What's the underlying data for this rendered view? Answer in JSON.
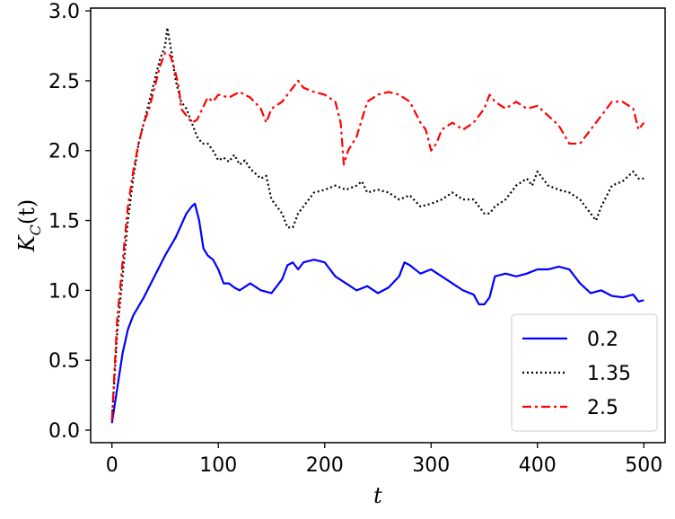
{
  "chart_data": {
    "type": "line",
    "xlabel": "t",
    "ylabel": "K_C(t)",
    "xlim": [
      -20,
      520
    ],
    "ylim": [
      -0.09,
      3.02
    ],
    "xticks": [
      0,
      100,
      200,
      300,
      400,
      500
    ],
    "xtick_labels": [
      "0",
      "100",
      "200",
      "300",
      "400",
      "500"
    ],
    "yticks": [
      0.0,
      0.5,
      1.0,
      1.5,
      2.0,
      2.5,
      3.0
    ],
    "ytick_labels": [
      "0.0",
      "0.5",
      "1.0",
      "1.5",
      "2.0",
      "2.5",
      "3.0"
    ],
    "grid": false,
    "legend_position": "lower-right",
    "series": [
      {
        "name": "0.2",
        "color": "#0000ff",
        "style": "solid",
        "points": [
          [
            0,
            0.05
          ],
          [
            5,
            0.3
          ],
          [
            10,
            0.55
          ],
          [
            15,
            0.72
          ],
          [
            20,
            0.82
          ],
          [
            30,
            0.95
          ],
          [
            40,
            1.1
          ],
          [
            50,
            1.25
          ],
          [
            60,
            1.38
          ],
          [
            70,
            1.55
          ],
          [
            75,
            1.6
          ],
          [
            78,
            1.62
          ],
          [
            82,
            1.5
          ],
          [
            86,
            1.3
          ],
          [
            90,
            1.25
          ],
          [
            95,
            1.22
          ],
          [
            100,
            1.15
          ],
          [
            105,
            1.05
          ],
          [
            110,
            1.05
          ],
          [
            115,
            1.02
          ],
          [
            120,
            1.0
          ],
          [
            130,
            1.05
          ],
          [
            140,
            1.0
          ],
          [
            150,
            0.98
          ],
          [
            160,
            1.08
          ],
          [
            165,
            1.18
          ],
          [
            170,
            1.2
          ],
          [
            175,
            1.15
          ],
          [
            180,
            1.2
          ],
          [
            190,
            1.22
          ],
          [
            200,
            1.2
          ],
          [
            210,
            1.1
          ],
          [
            220,
            1.05
          ],
          [
            230,
            1.0
          ],
          [
            240,
            1.03
          ],
          [
            250,
            0.98
          ],
          [
            255,
            1.0
          ],
          [
            260,
            1.02
          ],
          [
            270,
            1.1
          ],
          [
            275,
            1.2
          ],
          [
            280,
            1.18
          ],
          [
            290,
            1.12
          ],
          [
            300,
            1.15
          ],
          [
            310,
            1.1
          ],
          [
            320,
            1.05
          ],
          [
            330,
            1.0
          ],
          [
            340,
            0.97
          ],
          [
            345,
            0.9
          ],
          [
            350,
            0.9
          ],
          [
            355,
            0.95
          ],
          [
            360,
            1.1
          ],
          [
            370,
            1.12
          ],
          [
            380,
            1.1
          ],
          [
            390,
            1.12
          ],
          [
            400,
            1.15
          ],
          [
            410,
            1.15
          ],
          [
            420,
            1.17
          ],
          [
            430,
            1.15
          ],
          [
            440,
            1.05
          ],
          [
            450,
            0.98
          ],
          [
            460,
            1.0
          ],
          [
            470,
            0.96
          ],
          [
            480,
            0.95
          ],
          [
            490,
            0.97
          ],
          [
            495,
            0.92
          ],
          [
            500,
            0.93
          ]
        ]
      },
      {
        "name": "1.35",
        "color": "#000000",
        "style": "dotted",
        "points": [
          [
            0,
            0.07
          ],
          [
            5,
            0.7
          ],
          [
            10,
            1.1
          ],
          [
            15,
            1.5
          ],
          [
            20,
            1.8
          ],
          [
            25,
            2.05
          ],
          [
            30,
            2.2
          ],
          [
            35,
            2.35
          ],
          [
            40,
            2.5
          ],
          [
            45,
            2.65
          ],
          [
            50,
            2.75
          ],
          [
            52,
            2.88
          ],
          [
            55,
            2.75
          ],
          [
            60,
            2.5
          ],
          [
            65,
            2.35
          ],
          [
            70,
            2.3
          ],
          [
            75,
            2.2
          ],
          [
            80,
            2.1
          ],
          [
            85,
            2.05
          ],
          [
            90,
            2.05
          ],
          [
            95,
            2.0
          ],
          [
            100,
            1.93
          ],
          [
            105,
            1.95
          ],
          [
            110,
            1.92
          ],
          [
            115,
            1.97
          ],
          [
            120,
            1.9
          ],
          [
            125,
            1.93
          ],
          [
            130,
            1.87
          ],
          [
            140,
            1.8
          ],
          [
            145,
            1.82
          ],
          [
            150,
            1.65
          ],
          [
            155,
            1.6
          ],
          [
            160,
            1.55
          ],
          [
            165,
            1.45
          ],
          [
            170,
            1.45
          ],
          [
            175,
            1.55
          ],
          [
            180,
            1.6
          ],
          [
            190,
            1.7
          ],
          [
            200,
            1.72
          ],
          [
            210,
            1.75
          ],
          [
            220,
            1.72
          ],
          [
            230,
            1.75
          ],
          [
            235,
            1.78
          ],
          [
            240,
            1.7
          ],
          [
            250,
            1.72
          ],
          [
            260,
            1.7
          ],
          [
            270,
            1.65
          ],
          [
            280,
            1.68
          ],
          [
            290,
            1.6
          ],
          [
            300,
            1.62
          ],
          [
            310,
            1.65
          ],
          [
            320,
            1.7
          ],
          [
            330,
            1.65
          ],
          [
            340,
            1.65
          ],
          [
            350,
            1.55
          ],
          [
            355,
            1.55
          ],
          [
            360,
            1.6
          ],
          [
            370,
            1.65
          ],
          [
            380,
            1.75
          ],
          [
            390,
            1.8
          ],
          [
            395,
            1.75
          ],
          [
            400,
            1.85
          ],
          [
            405,
            1.8
          ],
          [
            410,
            1.75
          ],
          [
            420,
            1.72
          ],
          [
            430,
            1.7
          ],
          [
            440,
            1.65
          ],
          [
            450,
            1.55
          ],
          [
            455,
            1.5
          ],
          [
            460,
            1.6
          ],
          [
            470,
            1.75
          ],
          [
            480,
            1.78
          ],
          [
            490,
            1.85
          ],
          [
            495,
            1.8
          ],
          [
            500,
            1.8
          ]
        ]
      },
      {
        "name": "2.5",
        "color": "#ff0000",
        "style": "dashdot",
        "points": [
          [
            0,
            0.07
          ],
          [
            5,
            0.8
          ],
          [
            10,
            1.2
          ],
          [
            15,
            1.6
          ],
          [
            20,
            1.85
          ],
          [
            25,
            2.05
          ],
          [
            30,
            2.2
          ],
          [
            35,
            2.3
          ],
          [
            40,
            2.45
          ],
          [
            45,
            2.6
          ],
          [
            50,
            2.7
          ],
          [
            55,
            2.68
          ],
          [
            60,
            2.55
          ],
          [
            63,
            2.45
          ],
          [
            65,
            2.3
          ],
          [
            70,
            2.25
          ],
          [
            75,
            2.2
          ],
          [
            80,
            2.22
          ],
          [
            85,
            2.3
          ],
          [
            90,
            2.38
          ],
          [
            95,
            2.35
          ],
          [
            100,
            2.4
          ],
          [
            110,
            2.38
          ],
          [
            120,
            2.42
          ],
          [
            130,
            2.38
          ],
          [
            140,
            2.3
          ],
          [
            145,
            2.2
          ],
          [
            150,
            2.3
          ],
          [
            160,
            2.35
          ],
          [
            170,
            2.45
          ],
          [
            175,
            2.5
          ],
          [
            180,
            2.45
          ],
          [
            190,
            2.42
          ],
          [
            200,
            2.4
          ],
          [
            210,
            2.35
          ],
          [
            215,
            2.2
          ],
          [
            218,
            1.9
          ],
          [
            222,
            2.0
          ],
          [
            230,
            2.1
          ],
          [
            240,
            2.35
          ],
          [
            250,
            2.4
          ],
          [
            260,
            2.42
          ],
          [
            270,
            2.4
          ],
          [
            280,
            2.35
          ],
          [
            290,
            2.2
          ],
          [
            295,
            2.15
          ],
          [
            300,
            2.0
          ],
          [
            305,
            2.05
          ],
          [
            310,
            2.15
          ],
          [
            320,
            2.2
          ],
          [
            330,
            2.15
          ],
          [
            340,
            2.2
          ],
          [
            350,
            2.3
          ],
          [
            355,
            2.4
          ],
          [
            360,
            2.35
          ],
          [
            370,
            2.3
          ],
          [
            380,
            2.35
          ],
          [
            390,
            2.3
          ],
          [
            400,
            2.32
          ],
          [
            410,
            2.25
          ],
          [
            420,
            2.18
          ],
          [
            430,
            2.05
          ],
          [
            440,
            2.05
          ],
          [
            450,
            2.15
          ],
          [
            460,
            2.25
          ],
          [
            470,
            2.35
          ],
          [
            480,
            2.35
          ],
          [
            490,
            2.3
          ],
          [
            495,
            2.15
          ],
          [
            500,
            2.2
          ]
        ]
      }
    ]
  }
}
